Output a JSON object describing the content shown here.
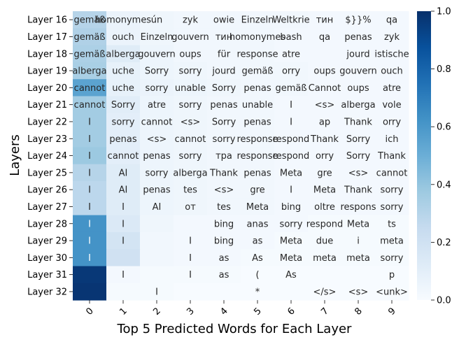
{
  "chart_data": {
    "type": "heatmap",
    "xlabel": "Top 5 Predicted Words for Each Layer",
    "ylabel": "Layers",
    "x_tick_labels": [
      "0",
      "1",
      "2",
      "3",
      "4",
      "5",
      "6",
      "7",
      "8",
      "9"
    ],
    "y_tick_labels": [
      "Layer 16",
      "Layer 17",
      "Layer 18",
      "Layer 19",
      "Layer 20",
      "Layer 21",
      "Layer 22",
      "Layer 23",
      "Layer 24",
      "Layer 25",
      "Layer 26",
      "Layer 27",
      "Layer 28",
      "Layer 29",
      "Layer 30",
      "Layer 31",
      "Layer 32"
    ],
    "colorbar": {
      "min": 0.0,
      "max": 1.0,
      "ticks": [
        0.0,
        0.2,
        0.4,
        0.6,
        0.8,
        1.0
      ],
      "tick_labels": [
        "0.0",
        "0.2",
        "0.4",
        "0.6",
        "0.8",
        "1.0"
      ],
      "colormap": "Blues"
    },
    "words": [
      [
        "gemäß",
        "homonymes",
        "ún",
        "zyk",
        "owie",
        "Einzeln",
        "Weltkrie",
        "тин",
        "$}}%",
        "qa"
      ],
      [
        "gemäß",
        "ouch",
        "Einzeln",
        "gouvern",
        "тин",
        "homonymes",
        "bash",
        "qa",
        "penas",
        "zyk"
      ],
      [
        "gemäß",
        "alberga",
        "gouvern",
        "oups",
        "für",
        "response",
        "atre",
        "",
        "jourd",
        "istische"
      ],
      [
        "alberga",
        "uche",
        "Sorry",
        "sorry",
        "jourd",
        "gemäß",
        "orry",
        "oups",
        "gouvern",
        "ouch"
      ],
      [
        "cannot",
        "uche",
        "sorry",
        "unable",
        "Sorry",
        "penas",
        "gemäß",
        "Cannot",
        "oups",
        "atre"
      ],
      [
        "cannot",
        "Sorry",
        "atre",
        "sorry",
        "penas",
        "unable",
        "I",
        "<s>",
        "alberga",
        "vole"
      ],
      [
        "I",
        "sorry",
        "cannot",
        "<s>",
        "Sorry",
        "penas",
        "I",
        "ap",
        "Thank",
        "orry"
      ],
      [
        "I",
        "penas",
        "<s>",
        "cannot",
        "sorry",
        "response",
        "respond",
        "Thank",
        "Sorry",
        "ich"
      ],
      [
        "I",
        "cannot",
        "penas",
        "sorry",
        "тра",
        "response",
        "respond",
        "orry",
        "Sorry",
        "Thank"
      ],
      [
        "I",
        "AI",
        "sorry",
        "alberga",
        "Thank",
        "penas",
        "Meta",
        "gre",
        "<s>",
        "cannot"
      ],
      [
        "I",
        "AI",
        "penas",
        "tes",
        "<s>",
        "gre",
        "I",
        "Meta",
        "Thank",
        "sorry"
      ],
      [
        "I",
        "I",
        "AI",
        "от",
        "tes",
        "Meta",
        "bing",
        "oltre",
        "respons",
        "sorry"
      ],
      [
        "I",
        "I",
        "",
        "",
        "bing",
        "anas",
        "sorry",
        "respond",
        "Meta",
        "ts"
      ],
      [
        "I",
        "I",
        "",
        "I",
        "bing",
        "as",
        "Meta",
        "due",
        "i",
        "meta"
      ],
      [
        "I",
        "",
        "",
        "I",
        "as",
        "As",
        "Meta",
        "meta",
        "meta",
        "sorry"
      ],
      [
        "",
        "I",
        "",
        "I",
        "as",
        "(",
        "As",
        "",
        "",
        "p"
      ],
      [
        "",
        "",
        "I",
        "",
        "",
        "*",
        "",
        "</s>",
        "<s>",
        "<unk>"
      ]
    ],
    "values": [
      [
        0.3,
        0.06,
        0.04,
        0.03,
        0.03,
        0.03,
        0.03,
        0.02,
        0.02,
        0.02
      ],
      [
        0.32,
        0.06,
        0.04,
        0.03,
        0.03,
        0.03,
        0.02,
        0.02,
        0.02,
        0.02
      ],
      [
        0.33,
        0.12,
        0.05,
        0.03,
        0.03,
        0.03,
        0.02,
        0.02,
        0.02,
        0.02
      ],
      [
        0.34,
        0.08,
        0.05,
        0.04,
        0.03,
        0.03,
        0.03,
        0.02,
        0.02,
        0.02
      ],
      [
        0.55,
        0.08,
        0.06,
        0.05,
        0.04,
        0.03,
        0.03,
        0.02,
        0.02,
        0.02
      ],
      [
        0.36,
        0.11,
        0.05,
        0.04,
        0.03,
        0.03,
        0.02,
        0.02,
        0.02,
        0.02
      ],
      [
        0.36,
        0.1,
        0.05,
        0.04,
        0.03,
        0.03,
        0.02,
        0.02,
        0.02,
        0.02
      ],
      [
        0.36,
        0.1,
        0.05,
        0.04,
        0.03,
        0.03,
        0.02,
        0.02,
        0.02,
        0.02
      ],
      [
        0.38,
        0.1,
        0.05,
        0.04,
        0.03,
        0.03,
        0.02,
        0.02,
        0.02,
        0.02
      ],
      [
        0.3,
        0.12,
        0.05,
        0.04,
        0.03,
        0.03,
        0.02,
        0.02,
        0.02,
        0.02
      ],
      [
        0.28,
        0.12,
        0.05,
        0.04,
        0.03,
        0.03,
        0.02,
        0.02,
        0.02,
        0.02
      ],
      [
        0.28,
        0.12,
        0.05,
        0.04,
        0.03,
        0.03,
        0.02,
        0.02,
        0.02,
        0.02
      ],
      [
        0.62,
        0.14,
        0.04,
        0.02,
        0.02,
        0.02,
        0.02,
        0.01,
        0.01,
        0.01
      ],
      [
        0.62,
        0.18,
        0.03,
        0.02,
        0.02,
        0.02,
        0.01,
        0.01,
        0.01,
        0.01
      ],
      [
        0.62,
        0.2,
        0.03,
        0.02,
        0.02,
        0.01,
        0.01,
        0.01,
        0.01,
        0.01
      ],
      [
        0.97,
        0.02,
        0.01,
        0.01,
        0.01,
        0.0,
        0.0,
        0.0,
        0.0,
        0.0
      ],
      [
        0.98,
        0.01,
        0.01,
        0.0,
        0.0,
        0.0,
        0.0,
        0.0,
        0.0,
        0.0
      ]
    ]
  }
}
